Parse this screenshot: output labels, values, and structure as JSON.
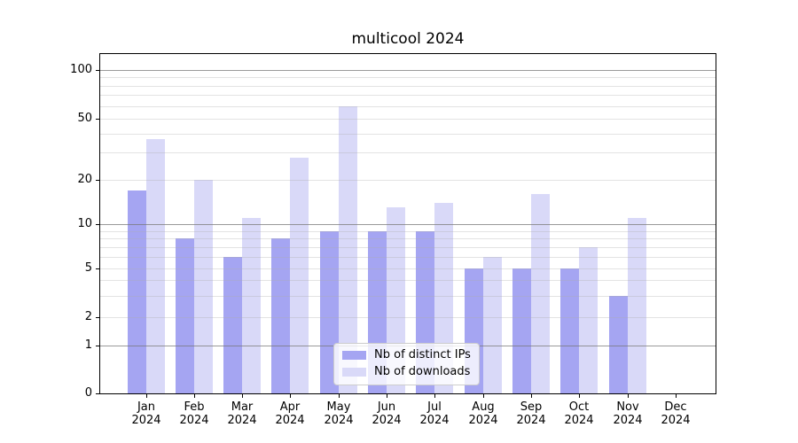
{
  "chart_data": {
    "type": "bar",
    "title": "multicool 2024",
    "categories": [
      "Jan",
      "Feb",
      "Mar",
      "Apr",
      "May",
      "Jun",
      "Jul",
      "Aug",
      "Sep",
      "Oct",
      "Nov",
      "Dec"
    ],
    "x_tick_second_line": "2024",
    "series": [
      {
        "name": "Nb of distinct IPs",
        "color": "#a5a5f2",
        "values": [
          17,
          8,
          6,
          8,
          9,
          9,
          9,
          5,
          5,
          5,
          3,
          0
        ]
      },
      {
        "name": "Nb of downloads",
        "color": "#d9d9f8",
        "values": [
          37,
          20,
          11,
          28,
          60,
          13,
          14,
          6,
          16,
          7,
          11,
          0
        ]
      }
    ],
    "y_axis": {
      "scale": "symlog",
      "tick_values": [
        0,
        1,
        2,
        5,
        10,
        20,
        50,
        100
      ],
      "ylim": [
        0,
        100
      ]
    },
    "grid": {
      "major_lines": [
        1,
        10,
        100
      ],
      "minor_lines": [
        2,
        3,
        4,
        5,
        6,
        7,
        8,
        9,
        20,
        30,
        40,
        50,
        60,
        70,
        80,
        90
      ]
    },
    "legend": {
      "position": "lower center"
    }
  },
  "colors": {
    "background": "#ffffff",
    "axis": "#000000",
    "major_grid": "rgba(120,120,120,0.75)",
    "minor_grid": "rgba(176,176,176,0.35)",
    "legend_border": "#cccccc"
  }
}
